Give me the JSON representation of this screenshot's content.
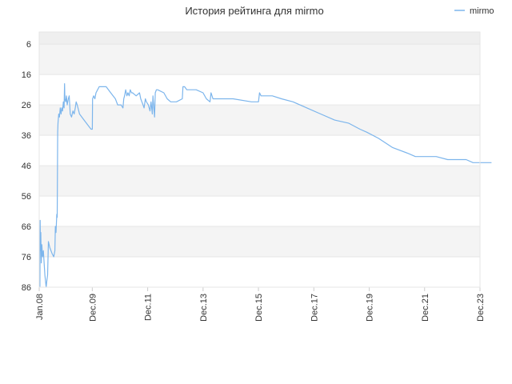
{
  "chart_data": {
    "type": "line",
    "title": "История рейтинга для mirmo",
    "xlabel": "",
    "ylabel": "",
    "legend_position": "top-right",
    "y_reversed": true,
    "ylim": [
      86,
      2
    ],
    "xlim": [
      "2008-01",
      "2023-12"
    ],
    "grid": true,
    "x_ticks": [
      "Jan.08",
      "Dec.09",
      "Dec.11",
      "Dec.13",
      "Dec.15",
      "Dec.17",
      "Dec.19",
      "Dec.21",
      "Dec.23"
    ],
    "y_ticks": [
      6,
      16,
      26,
      36,
      46,
      56,
      66,
      76,
      86
    ],
    "series": [
      {
        "name": "mirmo",
        "color": "#7cb5ec",
        "points": [
          [
            "2008-01-10",
            86
          ],
          [
            "2008-01-14",
            64
          ],
          [
            "2008-01-18",
            74
          ],
          [
            "2008-01-22",
            68
          ],
          [
            "2008-01-28",
            78
          ],
          [
            "2008-02-05",
            72
          ],
          [
            "2008-02-15",
            76
          ],
          [
            "2008-02-25",
            74
          ],
          [
            "2008-03-15",
            82
          ],
          [
            "2008-04-01",
            86
          ],
          [
            "2008-04-10",
            84
          ],
          [
            "2008-04-20",
            82
          ],
          [
            "2008-05-01",
            71
          ],
          [
            "2008-05-20",
            73
          ],
          [
            "2008-06-20",
            75
          ],
          [
            "2008-07-10",
            76
          ],
          [
            "2008-07-25",
            74
          ],
          [
            "2008-08-01",
            66
          ],
          [
            "2008-08-10",
            68
          ],
          [
            "2008-08-20",
            62
          ],
          [
            "2008-08-25",
            63
          ],
          [
            "2008-09-01",
            35
          ],
          [
            "2008-09-05",
            32
          ],
          [
            "2008-09-15",
            29
          ],
          [
            "2008-09-25",
            30
          ],
          [
            "2008-10-05",
            27
          ],
          [
            "2008-10-15",
            29
          ],
          [
            "2008-10-25",
            27
          ],
          [
            "2008-11-05",
            28
          ],
          [
            "2008-11-15",
            25
          ],
          [
            "2008-11-25",
            27
          ],
          [
            "2008-12-01",
            19
          ],
          [
            "2008-12-05",
            24
          ],
          [
            "2008-12-15",
            25
          ],
          [
            "2008-12-25",
            23
          ],
          [
            "2009-01-05",
            26
          ],
          [
            "2009-01-20",
            24
          ],
          [
            "2009-02-01",
            23
          ],
          [
            "2009-02-15",
            29
          ],
          [
            "2009-03-01",
            30
          ],
          [
            "2009-03-20",
            28
          ],
          [
            "2009-04-05",
            29
          ],
          [
            "2009-04-20",
            27
          ],
          [
            "2009-05-01",
            25
          ],
          [
            "2009-05-15",
            26
          ],
          [
            "2009-06-15",
            29
          ],
          [
            "2009-08-15",
            31
          ],
          [
            "2009-10-15",
            33
          ],
          [
            "2009-11-15",
            34
          ],
          [
            "2009-12-01",
            34
          ],
          [
            "2009-12-05",
            24
          ],
          [
            "2009-12-20",
            23
          ],
          [
            "2010-01-05",
            24
          ],
          [
            "2010-01-20",
            22
          ],
          [
            "2010-02-10",
            21
          ],
          [
            "2010-03-01",
            20
          ],
          [
            "2010-03-20",
            20
          ],
          [
            "2010-06-01",
            20
          ],
          [
            "2010-08-01",
            22
          ],
          [
            "2010-10-01",
            24
          ],
          [
            "2010-11-01",
            26
          ],
          [
            "2010-12-15",
            26
          ],
          [
            "2011-01-10",
            27
          ],
          [
            "2011-01-20",
            24
          ],
          [
            "2011-02-01",
            23
          ],
          [
            "2011-02-15",
            21
          ],
          [
            "2011-03-01",
            23
          ],
          [
            "2011-03-15",
            22
          ],
          [
            "2011-04-01",
            23
          ],
          [
            "2011-04-15",
            21
          ],
          [
            "2011-05-01",
            22
          ],
          [
            "2011-05-15",
            22
          ],
          [
            "2011-07-01",
            23
          ],
          [
            "2011-08-15",
            22
          ],
          [
            "2011-09-01",
            24
          ],
          [
            "2011-10-01",
            26
          ],
          [
            "2011-10-15",
            27
          ],
          [
            "2011-11-01",
            24
          ],
          [
            "2011-11-15",
            25
          ],
          [
            "2011-12-10",
            26
          ],
          [
            "2012-01-01",
            28
          ],
          [
            "2012-01-15",
            25
          ],
          [
            "2012-02-01",
            29
          ],
          [
            "2012-02-10",
            23
          ],
          [
            "2012-03-01",
            30
          ],
          [
            "2012-03-10",
            22
          ],
          [
            "2012-03-25",
            21
          ],
          [
            "2012-04-10",
            21
          ],
          [
            "2012-07-01",
            22
          ],
          [
            "2012-08-15",
            24
          ],
          [
            "2012-10-01",
            25
          ],
          [
            "2012-12-15",
            25
          ],
          [
            "2013-03-01",
            24
          ],
          [
            "2013-03-10",
            20
          ],
          [
            "2013-04-01",
            20
          ],
          [
            "2013-05-01",
            21
          ],
          [
            "2013-09-01",
            21
          ],
          [
            "2013-12-01",
            22
          ],
          [
            "2014-01-15",
            24
          ],
          [
            "2014-03-01",
            25
          ],
          [
            "2014-03-15",
            22
          ],
          [
            "2014-04-10",
            24
          ],
          [
            "2015-01-01",
            24
          ],
          [
            "2015-09-01",
            25
          ],
          [
            "2015-12-01",
            25
          ],
          [
            "2015-12-15",
            22
          ],
          [
            "2016-01-05",
            23
          ],
          [
            "2016-06-01",
            23
          ],
          [
            "2016-10-01",
            24
          ],
          [
            "2017-03-01",
            25
          ],
          [
            "2017-09-01",
            27
          ],
          [
            "2018-03-01",
            29
          ],
          [
            "2018-09-01",
            31
          ],
          [
            "2019-03-01",
            32
          ],
          [
            "2019-08-01",
            34
          ],
          [
            "2019-11-01",
            35
          ],
          [
            "2020-04-01",
            37
          ],
          [
            "2020-10-01",
            40
          ],
          [
            "2021-05-01",
            42
          ],
          [
            "2021-08-01",
            43
          ],
          [
            "2021-10-01",
            43
          ],
          [
            "2022-05-01",
            43
          ],
          [
            "2022-10-01",
            44
          ],
          [
            "2023-06-01",
            44
          ],
          [
            "2023-09-01",
            45
          ],
          [
            "2024-01-01",
            45
          ],
          [
            "2024-05-01",
            45
          ]
        ]
      }
    ]
  }
}
